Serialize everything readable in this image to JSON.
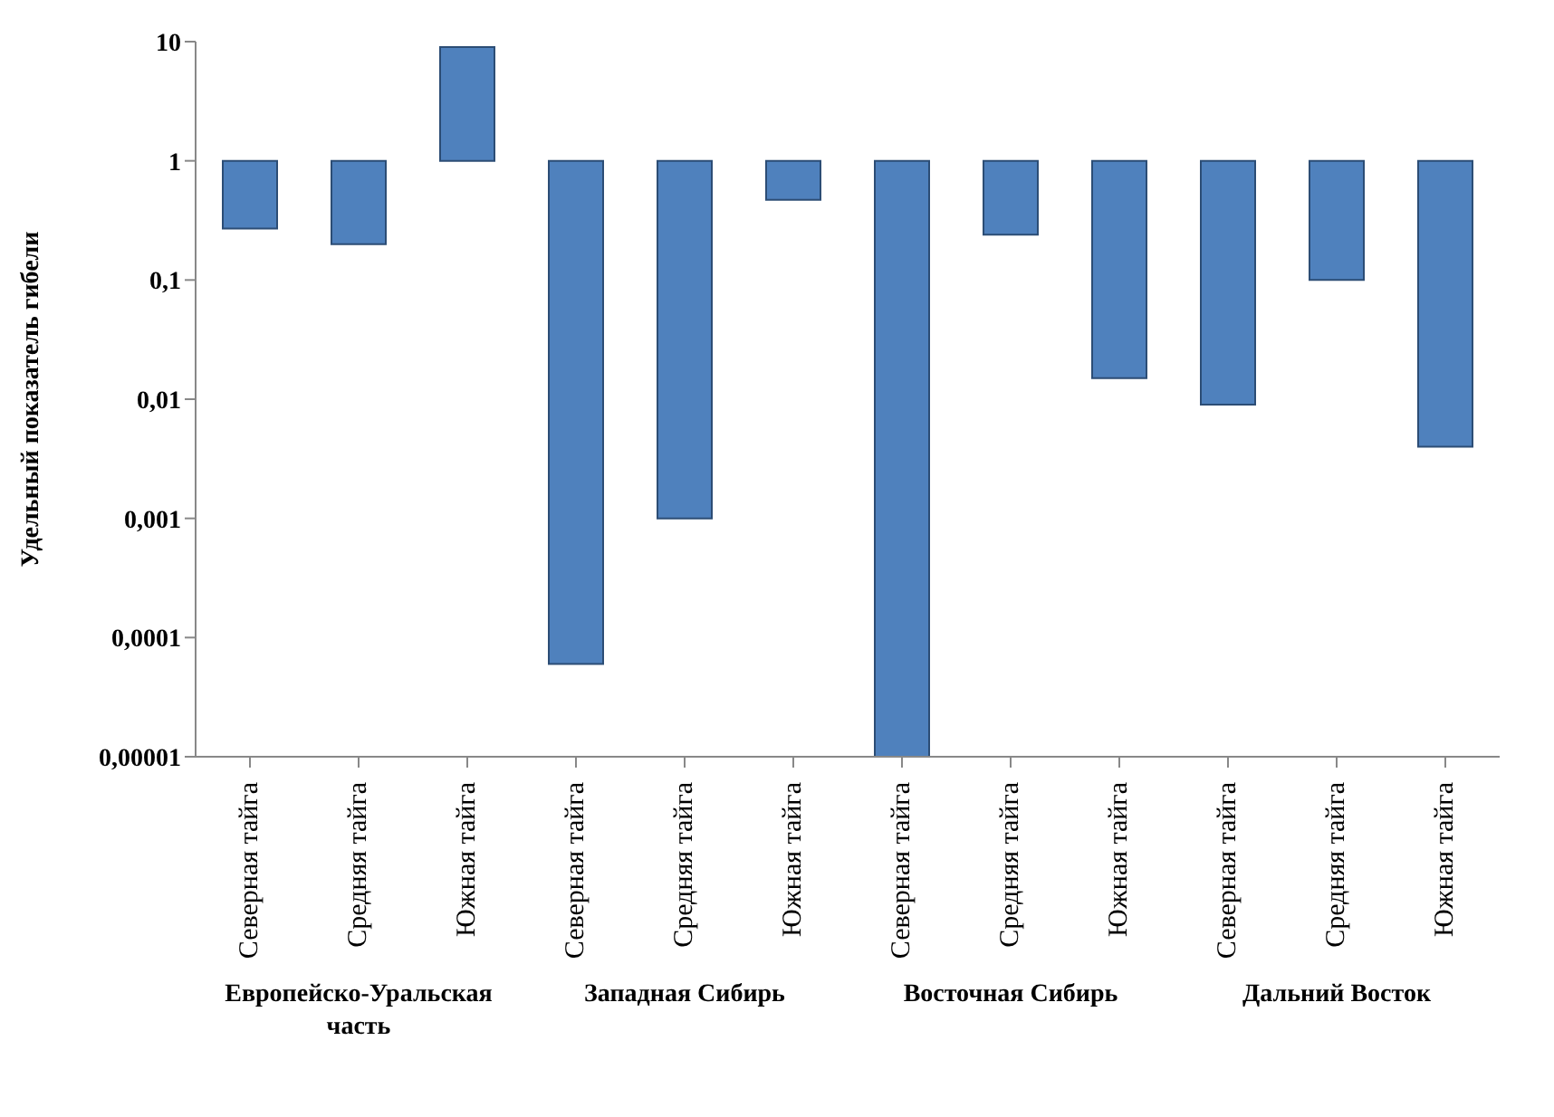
{
  "chart_data": {
    "type": "bar",
    "ylabel": "Удельный показатель гибели",
    "categories": [
      "Северная тайга",
      "Средняя тайга",
      "Южная тайга",
      "Северная тайга",
      "Средняя тайга",
      "Южная тайга",
      "Северная тайга",
      "Средняя тайга",
      "Южная тайга",
      "Северная тайга",
      "Средняя тайга",
      "Южная тайга"
    ],
    "base": [
      1,
      1,
      1,
      1,
      1,
      1,
      1,
      1,
      1,
      1,
      1,
      1
    ],
    "values": [
      -0.73,
      -0.8,
      8,
      -0.99994,
      -0.999,
      -0.53,
      -0.99999,
      -0.76,
      -0.985,
      -0.991,
      -0.9,
      -0.996
    ],
    "color": "#4f81bd",
    "log": true,
    "ylim": [
      1e-05,
      10
    ],
    "yticks": [
      {
        "value": 1e-05,
        "label": "0,00001"
      },
      {
        "value": 0.0001,
        "label": "0,0001"
      },
      {
        "value": 0.001,
        "label": "0,001"
      },
      {
        "value": 0.01,
        "label": "0,01"
      },
      {
        "value": 0.1,
        "label": "0,1"
      },
      {
        "value": 1,
        "label": "1"
      },
      {
        "value": 10,
        "label": "10"
      }
    ],
    "annotations": [
      "Европейско-Уральская часть",
      "Западная Сибирь",
      "Восточная Сибирь",
      "Дальний Восток"
    ],
    "grid": false,
    "legend": false
  }
}
